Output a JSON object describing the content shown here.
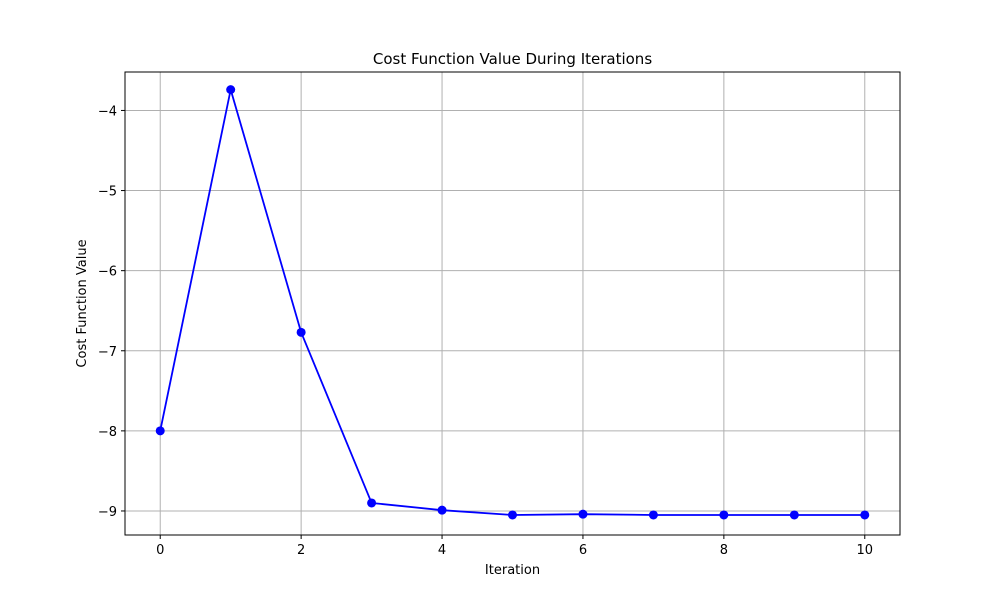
{
  "chart_data": {
    "type": "line",
    "title": "Cost Function Value During Iterations",
    "xlabel": "Iteration",
    "ylabel": "Cost Function Value",
    "xlim": [
      -0.5,
      10.5
    ],
    "ylim": [
      -9.3,
      -3.52
    ],
    "x_ticks": [
      0,
      2,
      4,
      6,
      8,
      10
    ],
    "x_tick_labels": [
      "0",
      "2",
      "4",
      "6",
      "8",
      "10"
    ],
    "y_ticks": [
      -9,
      -8,
      -7,
      -6,
      -5,
      -4
    ],
    "y_tick_labels": [
      "−9",
      "−8",
      "−7",
      "−6",
      "−5",
      "−4"
    ],
    "grid": true,
    "series": [
      {
        "color": "#0000ff",
        "marker": "circle",
        "x": [
          0,
          1,
          2,
          3,
          4,
          5,
          6,
          7,
          8,
          9,
          10
        ],
        "y": [
          -8.0,
          -3.74,
          -6.77,
          -8.9,
          -8.99,
          -9.05,
          -9.04,
          -9.05,
          -9.05,
          -9.05,
          -9.05
        ]
      }
    ]
  }
}
